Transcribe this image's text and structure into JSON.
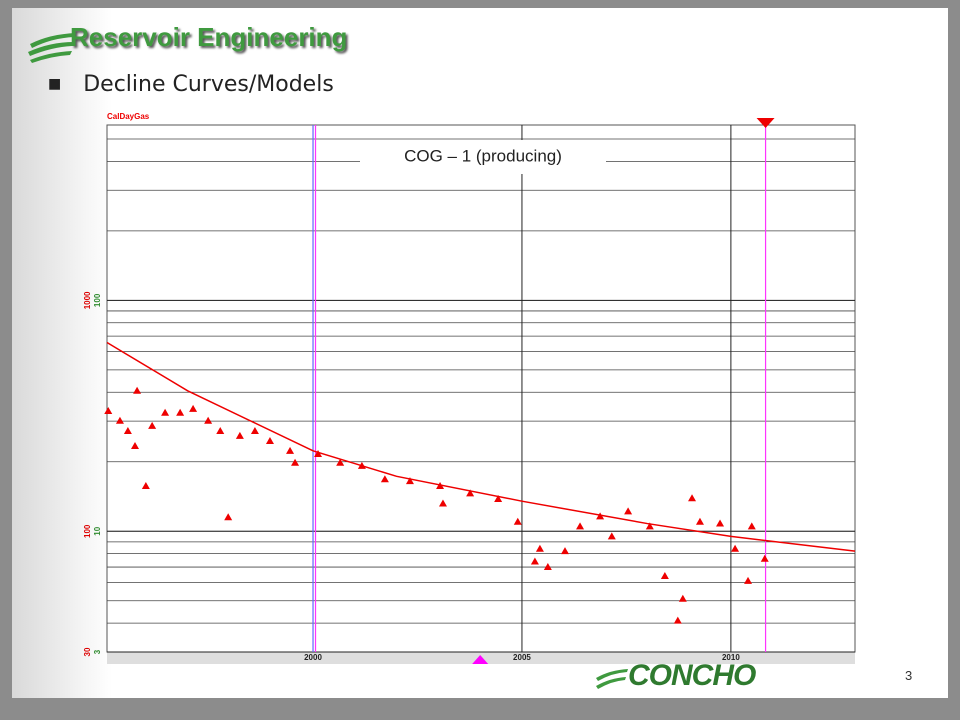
{
  "slide": {
    "title": "Reservoir Engineering",
    "bullet": "Decline Curves/Models",
    "page_number": 3,
    "logo": "CONCHO"
  },
  "chart_data": {
    "type": "scatter",
    "y_label": "CalDayGas",
    "annotation": "COG – 1 (producing)",
    "log_scale": true,
    "grid": true,
    "xlim": [
      1995.07,
      2012.97
    ],
    "xticks": [
      2000,
      2005,
      2010
    ],
    "ylim": [
      3,
      575
    ],
    "yticks": [
      3,
      10,
      100
    ],
    "y2lim": [
      30,
      5750
    ],
    "y2ticks": [
      30,
      100,
      1000
    ],
    "series": [
      {
        "color": "#ee0000",
        "axis": "y2",
        "marker": "triangle",
        "x": [
          1995.1,
          1995.38,
          1995.57,
          1995.74,
          1995.79,
          1996.0,
          1996.15,
          1996.46,
          1996.82,
          1997.13,
          1997.49,
          1997.78,
          1997.97,
          1998.25,
          1998.61,
          1998.97,
          1999.45,
          1999.57,
          2000.12,
          2000.65,
          2001.17,
          2001.72,
          2002.32,
          2003.04,
          2003.11,
          2003.76,
          2004.43,
          2004.9,
          2005.31,
          2005.43,
          2005.62,
          2006.03,
          2006.39,
          2006.87,
          2007.15,
          2007.54,
          2008.06,
          2008.42,
          2008.73,
          2008.85,
          2009.07,
          2009.26,
          2009.74,
          2010.1,
          2010.41,
          2010.5,
          2010.81
        ],
        "values": [
          332,
          301,
          272,
          234,
          406,
          157,
          286,
          326,
          326,
          339,
          301,
          272,
          115,
          259,
          272,
          246,
          223,
          198,
          216,
          198,
          192,
          168,
          165,
          157,
          132,
          146,
          138,
          110,
          74,
          84,
          70,
          82,
          105,
          116,
          95,
          122,
          105,
          64,
          41,
          51,
          139,
          110,
          108,
          84,
          61,
          105,
          76
        ]
      },
      {
        "color": "#ee0000",
        "axis": "y2",
        "marker": "line",
        "x": [
          1995.07,
          1997,
          2000,
          2002,
          2005,
          2008,
          2010,
          2012.97
        ],
        "values": [
          657,
          406,
          223,
          173,
          135,
          108,
          95,
          82
        ]
      }
    ],
    "event_lines": [
      {
        "x": 2000.0,
        "color": "#6666ff"
      },
      {
        "x": 2000.06,
        "color": "#ff33ff"
      },
      {
        "x": 2010.83,
        "color": "#ff33ff"
      }
    ],
    "event_markers": [
      {
        "x": 2010.83,
        "color": "#ee0000",
        "position": "top"
      },
      {
        "x": 2004.0,
        "color": "#ff00ff",
        "position": "bottom"
      }
    ]
  }
}
